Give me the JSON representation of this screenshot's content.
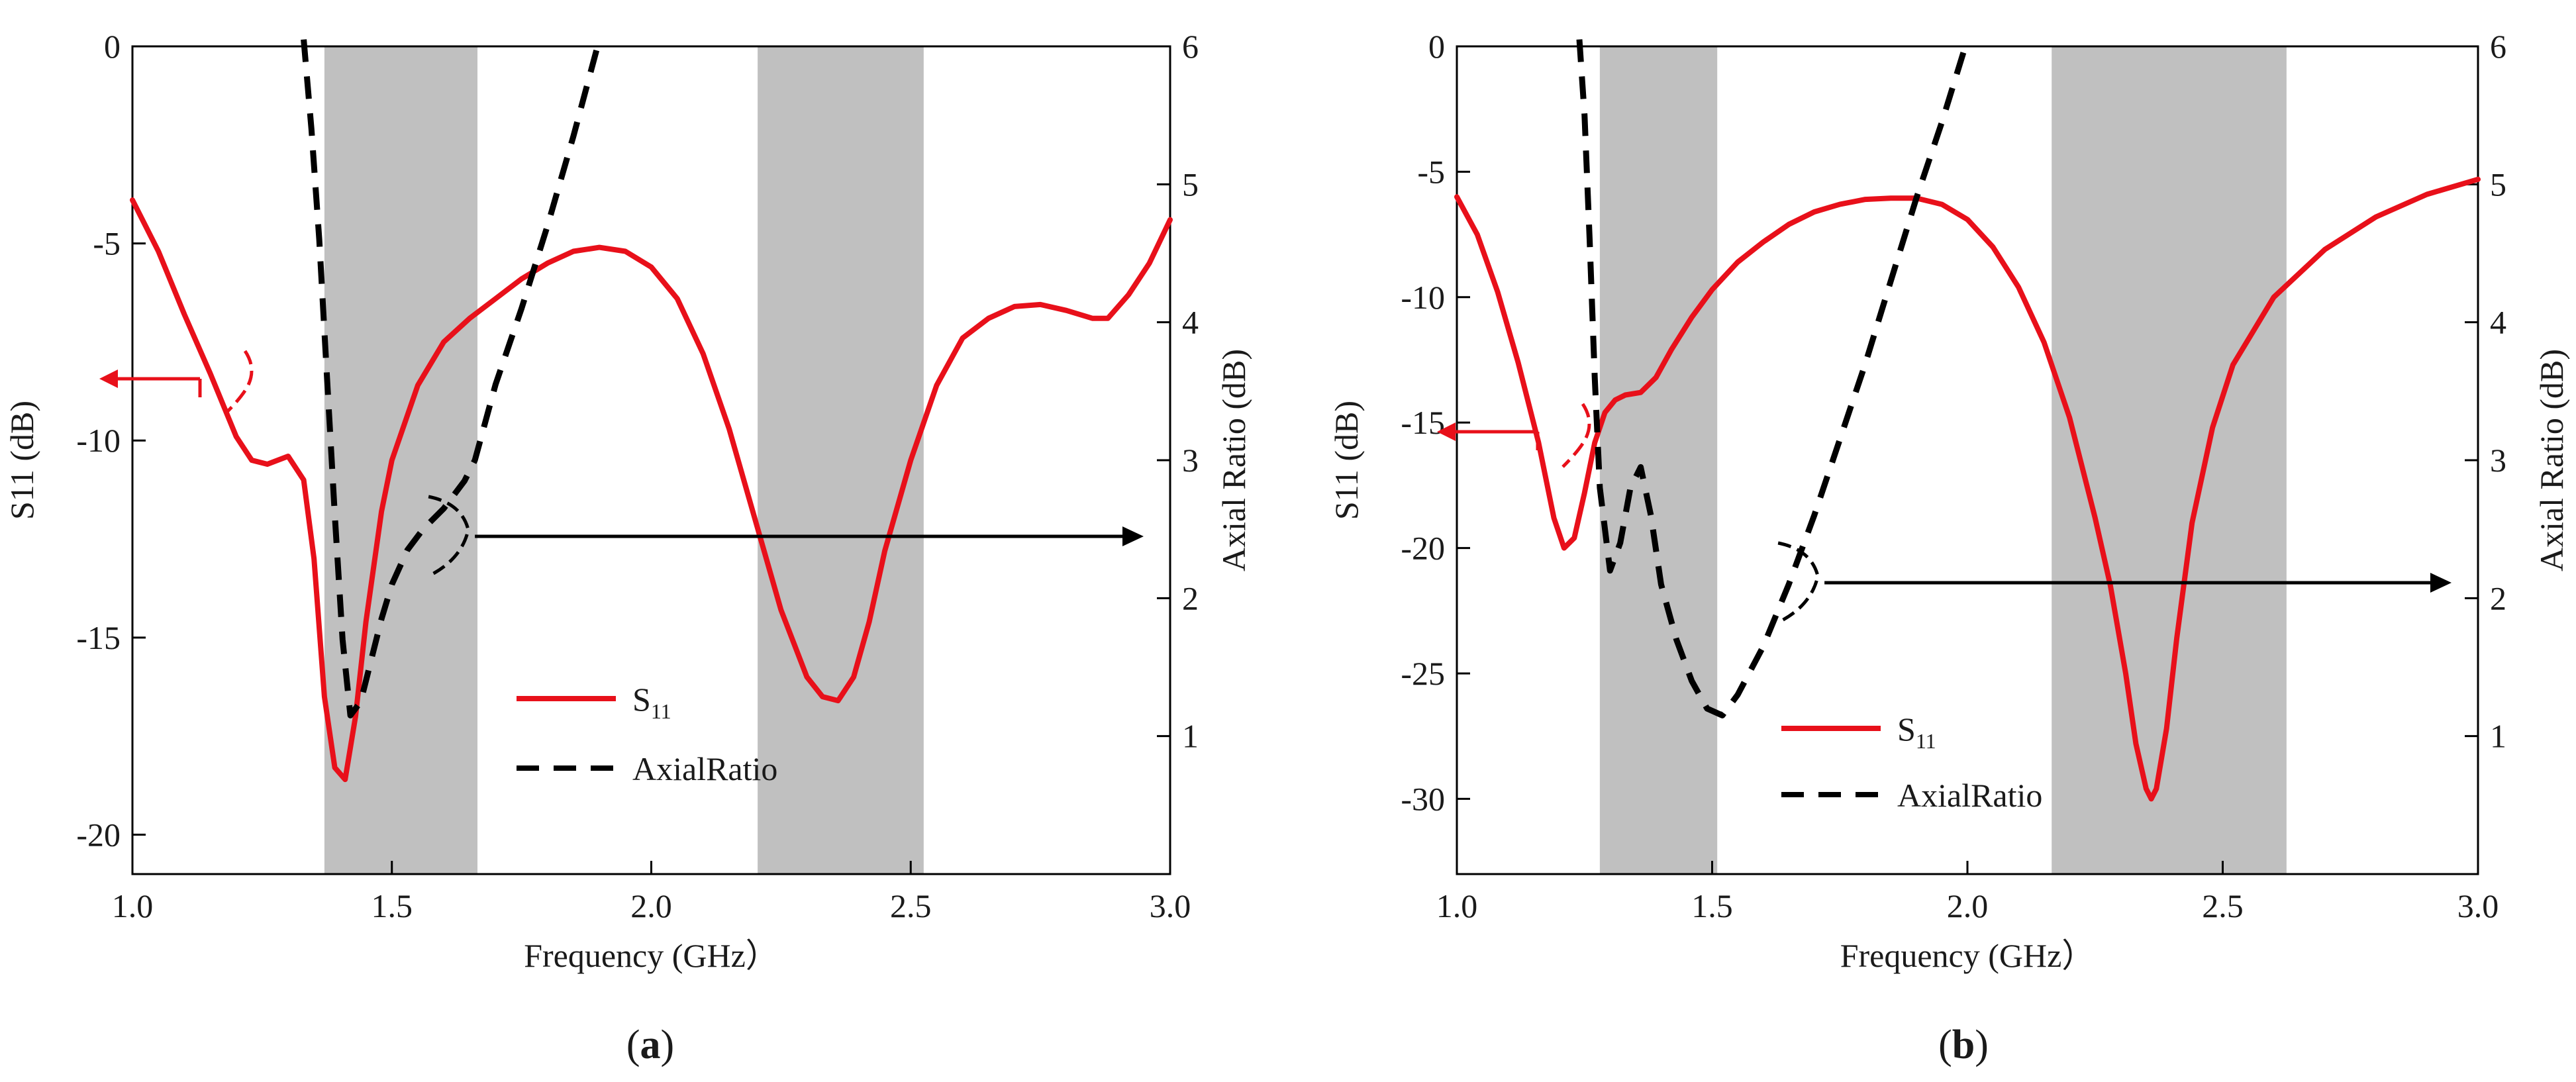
{
  "chart_data": [
    {
      "type": "line",
      "panel_label": "a",
      "xlabel": "Frequency (GHz）",
      "ylabel": "S11 (dB)",
      "y2label": "Axial Ratio (dB)",
      "xlim": [
        1.0,
        3.0
      ],
      "ylim": [
        -21,
        0
      ],
      "y2lim": [
        0,
        6
      ],
      "xticks": [
        "1.0",
        "1.5",
        "2.0",
        "2.5",
        "3.0"
      ],
      "yticks": [
        "0",
        "-5",
        "-10",
        "-15",
        "-20"
      ],
      "y2ticks": [
        "1",
        "2",
        "3",
        "4",
        "5",
        "6"
      ],
      "shaded_bands": [
        [
          1.37,
          1.665
        ],
        [
          2.205,
          2.525
        ]
      ],
      "legend": {
        "s11_main": "S",
        "s11_sub": "11",
        "axial_ratio": "AxialRatio"
      },
      "series": [
        {
          "name": "S11",
          "axis": "left",
          "color": "#e8101a",
          "x": [
            1.0,
            1.05,
            1.1,
            1.15,
            1.2,
            1.23,
            1.26,
            1.3,
            1.33,
            1.35,
            1.37,
            1.39,
            1.41,
            1.43,
            1.45,
            1.48,
            1.5,
            1.55,
            1.6,
            1.65,
            1.7,
            1.75,
            1.8,
            1.85,
            1.9,
            1.95,
            2.0,
            2.05,
            2.1,
            2.15,
            2.2,
            2.25,
            2.3,
            2.33,
            2.36,
            2.39,
            2.42,
            2.45,
            2.5,
            2.55,
            2.6,
            2.65,
            2.7,
            2.75,
            2.8,
            2.85,
            2.88,
            2.92,
            2.96,
            3.0
          ],
          "values": [
            -3.9,
            -5.2,
            -6.8,
            -8.3,
            -9.9,
            -10.5,
            -10.6,
            -10.4,
            -11.0,
            -13.0,
            -16.5,
            -18.3,
            -18.6,
            -17.0,
            -14.6,
            -11.8,
            -10.5,
            -8.6,
            -7.5,
            -6.9,
            -6.4,
            -5.9,
            -5.5,
            -5.2,
            -5.1,
            -5.2,
            -5.6,
            -6.4,
            -7.8,
            -9.7,
            -12.0,
            -14.3,
            -16.0,
            -16.5,
            -16.6,
            -16.0,
            -14.6,
            -12.8,
            -10.5,
            -8.6,
            -7.4,
            -6.9,
            -6.6,
            -6.55,
            -6.7,
            -6.9,
            -6.9,
            -6.3,
            -5.5,
            -4.4
          ]
        },
        {
          "name": "AxialRatio",
          "axis": "right",
          "color": "#000000",
          "x": [
            1.33,
            1.345,
            1.36,
            1.375,
            1.39,
            1.405,
            1.42,
            1.44,
            1.46,
            1.48,
            1.5,
            1.53,
            1.56,
            1.6,
            1.64,
            1.66,
            1.7,
            1.75,
            1.8,
            1.85,
            1.9
          ],
          "values": [
            6.05,
            5.4,
            4.6,
            3.6,
            2.6,
            1.7,
            1.15,
            1.25,
            1.55,
            1.85,
            2.1,
            2.35,
            2.5,
            2.65,
            2.85,
            3.0,
            3.55,
            4.1,
            4.7,
            5.35,
            6.05
          ]
        }
      ]
    },
    {
      "type": "line",
      "panel_label": "b",
      "xlabel": "Frequency (GHz）",
      "ylabel": "S11 (dB)",
      "y2label": "Axial Ratio (dB)",
      "xlim": [
        1.0,
        3.0
      ],
      "ylim": [
        -33,
        0
      ],
      "y2lim": [
        0,
        6
      ],
      "xticks": [
        "1.0",
        "1.5",
        "2.0",
        "2.5",
        "3.0"
      ],
      "yticks": [
        "0",
        "-5",
        "-10",
        "-15",
        "-20",
        "-25",
        "-30"
      ],
      "y2ticks": [
        "1",
        "2",
        "3",
        "4",
        "5",
        "6"
      ],
      "shaded_bands": [
        [
          1.28,
          1.51
        ],
        [
          2.165,
          2.625
        ]
      ],
      "legend": {
        "s11_main": "S",
        "s11_sub": "11",
        "axial_ratio": "AxialRatio"
      },
      "series": [
        {
          "name": "S11",
          "axis": "left",
          "color": "#e8101a",
          "x": [
            1.0,
            1.04,
            1.08,
            1.12,
            1.16,
            1.19,
            1.21,
            1.23,
            1.25,
            1.27,
            1.29,
            1.31,
            1.33,
            1.36,
            1.39,
            1.42,
            1.46,
            1.5,
            1.55,
            1.6,
            1.65,
            1.7,
            1.75,
            1.8,
            1.85,
            1.9,
            1.95,
            2.0,
            2.05,
            2.1,
            2.15,
            2.2,
            2.25,
            2.28,
            2.31,
            2.33,
            2.35,
            2.36,
            2.37,
            2.39,
            2.41,
            2.44,
            2.48,
            2.52,
            2.6,
            2.7,
            2.8,
            2.9,
            3.0
          ],
          "values": [
            -6.0,
            -7.5,
            -9.8,
            -12.6,
            -15.8,
            -18.8,
            -20.0,
            -19.6,
            -17.8,
            -15.8,
            -14.6,
            -14.1,
            -13.9,
            -13.8,
            -13.2,
            -12.1,
            -10.8,
            -9.7,
            -8.6,
            -7.8,
            -7.1,
            -6.6,
            -6.3,
            -6.1,
            -6.05,
            -6.05,
            -6.3,
            -6.9,
            -8.0,
            -9.6,
            -11.8,
            -14.8,
            -18.8,
            -21.5,
            -25.0,
            -27.8,
            -29.6,
            -30.0,
            -29.6,
            -27.2,
            -23.6,
            -19.0,
            -15.2,
            -12.7,
            -10.0,
            -8.1,
            -6.8,
            -5.9,
            -5.3
          ]
        },
        {
          "name": "AxialRatio",
          "axis": "right",
          "color": "#000000",
          "x": [
            1.24,
            1.25,
            1.26,
            1.27,
            1.28,
            1.3,
            1.32,
            1.34,
            1.36,
            1.38,
            1.4,
            1.43,
            1.46,
            1.49,
            1.52,
            1.55,
            1.6,
            1.65,
            1.7,
            1.75,
            1.8,
            1.85,
            1.9,
            1.95,
            2.0
          ],
          "values": [
            6.05,
            5.5,
            4.6,
            3.6,
            2.8,
            2.2,
            2.4,
            2.8,
            2.95,
            2.6,
            2.1,
            1.7,
            1.4,
            1.2,
            1.15,
            1.3,
            1.65,
            2.1,
            2.6,
            3.15,
            3.7,
            4.3,
            4.9,
            5.45,
            6.05
          ]
        }
      ]
    }
  ]
}
